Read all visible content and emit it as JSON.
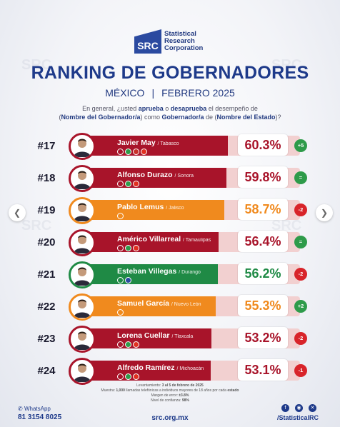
{
  "brand": {
    "logo": "SRC",
    "line1": "Statistical",
    "line2": "Research",
    "line3": "Corporation"
  },
  "title": "RANKING DE GOBERNADORES",
  "subtitle": {
    "country": "MÉXICO",
    "sep": "|",
    "date": "FEBRERO 2025"
  },
  "question": {
    "p1": "En general, ¿usted ",
    "aprueba": "aprueba",
    "p2": " o ",
    "desaprueba": "desaprueba",
    "p3": " el desempeño de",
    "p4": "(",
    "nombre_gob": "Nombre del Gobernador/a",
    "p5": ") como ",
    "gob": "Gobernador/a",
    "p6": " de (",
    "estado": "Nombre del Estado",
    "p7": ")?"
  },
  "rows": [
    {
      "rank": "#17",
      "name": "Javier May",
      "state": "/ Tabasco",
      "pct": "60.3%",
      "value": 60.3,
      "change": "+5",
      "change_color": "#2e9b4a",
      "fill_color": "#a8142a",
      "border_color": "#a8142a",
      "parties": [
        "#a8142a",
        "#2e9b4a",
        "#c8302a",
        "#e03020"
      ]
    },
    {
      "rank": "#18",
      "name": "Alfonso Durazo",
      "state": "/ Sonora",
      "pct": "59.8%",
      "value": 59.8,
      "change": "=",
      "change_color": "#2e9b4a",
      "fill_color": "#a8142a",
      "border_color": "#a8142a",
      "parties": [
        "#a8142a",
        "#2e9b4a",
        "#e03020"
      ]
    },
    {
      "rank": "#19",
      "name": "Pablo Lemus",
      "state": "/ Jalisco",
      "pct": "58.7%",
      "value": 58.7,
      "change": "-2",
      "change_color": "#d8242a",
      "fill_color": "#f08a1e",
      "border_color": "#f08a1e",
      "parties": [
        "#f08a1e"
      ]
    },
    {
      "rank": "#20",
      "name": "Américo Villarreal",
      "state": "/ Tamaulipas",
      "pct": "56.4%",
      "value": 56.4,
      "change": "=",
      "change_color": "#2e9b4a",
      "fill_color": "#a8142a",
      "border_color": "#a8142a",
      "parties": [
        "#a8142a",
        "#2e9b4a",
        "#e03020"
      ]
    },
    {
      "rank": "#21",
      "name": "Esteban Villegas",
      "state": "/ Durango",
      "pct": "56.2%",
      "value": 56.2,
      "change": "-2",
      "change_color": "#d8242a",
      "fill_color": "#1f8a45",
      "border_color": "#1f8a45",
      "parties": [
        "#1f8a45",
        "#2a4aa0"
      ]
    },
    {
      "rank": "#22",
      "name": "Samuel García",
      "state": "/ Nuevo León",
      "pct": "55.3%",
      "value": 55.3,
      "change": "+2",
      "change_color": "#2e9b4a",
      "fill_color": "#f08a1e",
      "border_color": "#f08a1e",
      "parties": [
        "#f08a1e"
      ]
    },
    {
      "rank": "#23",
      "name": "Lorena Cuellar",
      "state": "/ Tlaxcala",
      "pct": "53.2%",
      "value": 53.2,
      "change": "-2",
      "change_color": "#d8242a",
      "fill_color": "#a8142a",
      "border_color": "#a8142a",
      "parties": [
        "#a8142a",
        "#2e9b4a",
        "#e03020"
      ]
    },
    {
      "rank": "#24",
      "name": "Alfredo Ramírez",
      "state": "/ Michoacán",
      "pct": "53.1%",
      "value": 53.1,
      "change": "-1",
      "change_color": "#d8242a",
      "fill_color": "#a8142a",
      "border_color": "#a8142a",
      "parties": [
        "#a8142a",
        "#2e9b4a",
        "#e03020"
      ]
    }
  ],
  "footer_note": {
    "l1a": "Levantamiento: ",
    "l1b": "3 al 5 de febrero de 2025",
    "l2a": "Muestra: ",
    "l2b": "1,000",
    "l2c": " llamadas telefónicas a individuos mayores de 18 años por cada ",
    "l2d": "estado",
    "l3a": "Margen de error: ",
    "l3b": "±3.8%",
    "l4a": "Nivel de confianza: ",
    "l4b": "98%"
  },
  "contact": {
    "whatsapp_label": "WhatsApp",
    "whatsapp_number": "81 3154 8025",
    "site": "src.org.mx",
    "handle": "/StatisticalRC"
  },
  "icons": {
    "prev": "chevron-left-icon",
    "next": "chevron-right-icon",
    "facebook": "facebook-icon",
    "instagram": "instagram-icon",
    "x": "x-icon",
    "whatsapp": "whatsapp-icon"
  }
}
